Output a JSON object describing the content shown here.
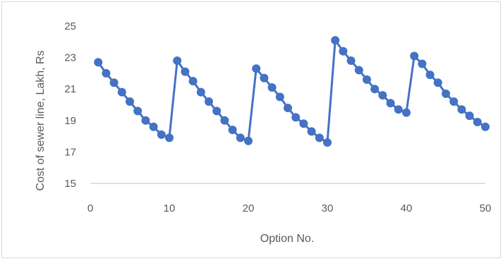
{
  "chart_data": {
    "type": "line",
    "title": "",
    "xlabel": "Option No.",
    "ylabel": "Cost of  sewer line, Lakh, Rs",
    "xlim": [
      0,
      50
    ],
    "ylim": [
      15,
      25
    ],
    "xticks": [
      "0",
      "10",
      "20",
      "30",
      "40",
      "50"
    ],
    "yticks": [
      "15",
      "17",
      "19",
      "21",
      "23",
      "25"
    ],
    "grid": false,
    "legend": "none",
    "color": "#4472C4",
    "series": [
      {
        "x": [
          1,
          2,
          3,
          4,
          5,
          6,
          7,
          8,
          9,
          10,
          11,
          12,
          13,
          14,
          15,
          16,
          17,
          18,
          19,
          20,
          21,
          22,
          23,
          24,
          25,
          26,
          27,
          28,
          29,
          30,
          31,
          32,
          33,
          34,
          35,
          36,
          37,
          38,
          39,
          40,
          41,
          42,
          43,
          44,
          45,
          46,
          47,
          48,
          49,
          50
        ],
        "values": [
          22.7,
          22.0,
          21.4,
          20.8,
          20.2,
          19.6,
          19.0,
          18.6,
          18.1,
          17.9,
          22.8,
          22.1,
          21.5,
          20.8,
          20.2,
          19.6,
          19.0,
          18.4,
          17.9,
          17.7,
          22.3,
          21.7,
          21.1,
          20.5,
          19.8,
          19.2,
          18.8,
          18.3,
          17.9,
          17.6,
          24.1,
          23.4,
          22.8,
          22.2,
          21.6,
          21.0,
          20.6,
          20.1,
          19.7,
          19.5,
          23.1,
          22.6,
          21.9,
          21.4,
          20.7,
          20.2,
          19.7,
          19.3,
          18.9,
          18.6
        ]
      }
    ]
  }
}
